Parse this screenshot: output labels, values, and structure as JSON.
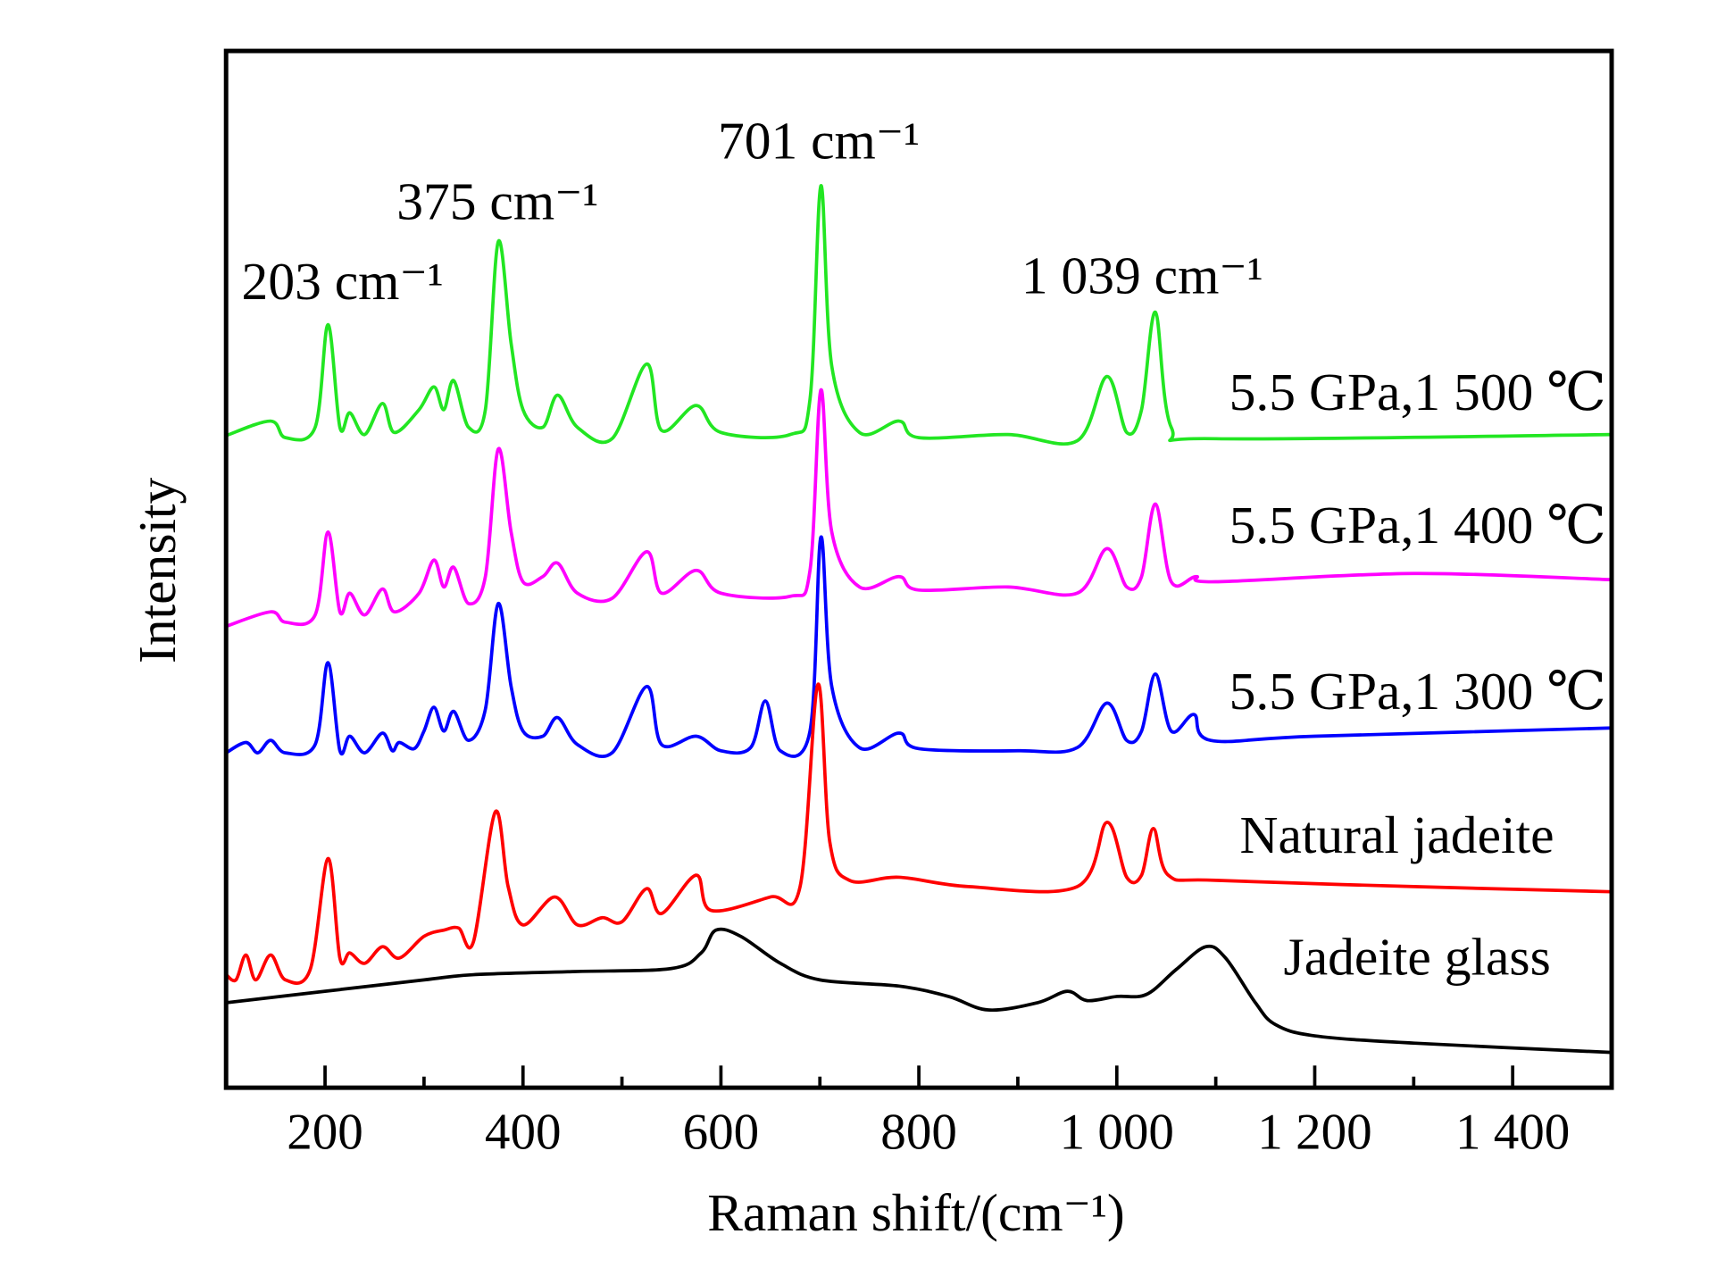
{
  "chart_data": {
    "type": "line",
    "title": "",
    "xlabel": "Raman shift/(cm⁻¹)",
    "ylabel": "Intensity",
    "xlim": [
      100,
      1500
    ],
    "ylim": [
      0,
      100
    ],
    "grid": false,
    "xticks": [
      200,
      400,
      600,
      800,
      1000,
      1200,
      1400
    ],
    "xtick_labels": [
      "200",
      "400",
      "600",
      "800",
      "1 000",
      "1 200",
      "1 400"
    ],
    "minor_xticks": [
      300,
      500,
      700,
      900,
      1100,
      1300
    ],
    "peak_annotations": [
      {
        "text": "203 cm⁻¹",
        "x": 203
      },
      {
        "text": "375 cm⁻¹",
        "x": 375
      },
      {
        "text": "701 cm⁻¹",
        "x": 701
      },
      {
        "text": "1 039 cm⁻¹",
        "x": 1039
      }
    ],
    "series": [
      {
        "name": "5.5 GPa,1 500 ℃",
        "color": "#22e622",
        "points": [
          [
            100,
            62.9
          ],
          [
            145,
            64.3
          ],
          [
            160,
            62.7
          ],
          [
            190,
            63.7
          ],
          [
            203,
            73.6
          ],
          [
            215,
            63.7
          ],
          [
            225,
            65.1
          ],
          [
            240,
            63.0
          ],
          [
            258,
            66.0
          ],
          [
            270,
            63.2
          ],
          [
            295,
            65.4
          ],
          [
            310,
            67.6
          ],
          [
            320,
            65.4
          ],
          [
            330,
            68.2
          ],
          [
            345,
            63.7
          ],
          [
            362,
            65.4
          ],
          [
            375,
            81.6
          ],
          [
            388,
            71.8
          ],
          [
            400,
            65.4
          ],
          [
            420,
            63.7
          ],
          [
            435,
            66.8
          ],
          [
            455,
            63.7
          ],
          [
            490,
            62.6
          ],
          [
            525,
            69.8
          ],
          [
            540,
            63.4
          ],
          [
            575,
            65.8
          ],
          [
            600,
            63.2
          ],
          [
            670,
            63.0
          ],
          [
            690,
            66.4
          ],
          [
            701,
            87.0
          ],
          [
            712,
            69.6
          ],
          [
            740,
            63.2
          ],
          [
            780,
            64.3
          ],
          [
            800,
            62.7
          ],
          [
            890,
            63.0
          ],
          [
            960,
            62.4
          ],
          [
            990,
            68.6
          ],
          [
            1010,
            63.2
          ],
          [
            1025,
            65.4
          ],
          [
            1039,
            74.8
          ],
          [
            1055,
            63.7
          ],
          [
            1100,
            62.6
          ],
          [
            1500,
            63.0
          ]
        ]
      },
      {
        "name": "5.5 GPa,1 400 ℃",
        "color": "#ff00ff",
        "points": [
          [
            100,
            44.5
          ],
          [
            145,
            45.9
          ],
          [
            160,
            44.9
          ],
          [
            190,
            45.6
          ],
          [
            203,
            53.6
          ],
          [
            215,
            45.9
          ],
          [
            225,
            47.7
          ],
          [
            240,
            45.6
          ],
          [
            258,
            48.1
          ],
          [
            270,
            45.9
          ],
          [
            295,
            47.7
          ],
          [
            310,
            50.9
          ],
          [
            320,
            48.3
          ],
          [
            330,
            50.2
          ],
          [
            345,
            46.7
          ],
          [
            362,
            49.3
          ],
          [
            375,
            61.6
          ],
          [
            388,
            53.6
          ],
          [
            400,
            48.8
          ],
          [
            420,
            49.3
          ],
          [
            435,
            50.6
          ],
          [
            455,
            47.7
          ],
          [
            490,
            47.2
          ],
          [
            525,
            51.7
          ],
          [
            540,
            47.7
          ],
          [
            575,
            49.9
          ],
          [
            600,
            47.7
          ],
          [
            670,
            47.4
          ],
          [
            690,
            49.9
          ],
          [
            701,
            67.3
          ],
          [
            712,
            53.6
          ],
          [
            740,
            48.3
          ],
          [
            780,
            49.3
          ],
          [
            800,
            48.0
          ],
          [
            890,
            48.3
          ],
          [
            960,
            47.7
          ],
          [
            990,
            52.0
          ],
          [
            1010,
            48.3
          ],
          [
            1025,
            49.3
          ],
          [
            1039,
            56.3
          ],
          [
            1055,
            48.8
          ],
          [
            1080,
            49.3
          ],
          [
            1100,
            48.8
          ],
          [
            1300,
            49.6
          ],
          [
            1500,
            49.0
          ]
        ]
      },
      {
        "name": "5.5 GPa,1 300 ℃",
        "color": "#0000ff",
        "points": [
          [
            100,
            32.3
          ],
          [
            120,
            33.3
          ],
          [
            132,
            32.3
          ],
          [
            145,
            33.5
          ],
          [
            160,
            32.3
          ],
          [
            190,
            33.1
          ],
          [
            203,
            41.0
          ],
          [
            215,
            32.5
          ],
          [
            225,
            33.9
          ],
          [
            240,
            32.3
          ],
          [
            258,
            34.2
          ],
          [
            268,
            32.5
          ],
          [
            275,
            33.3
          ],
          [
            290,
            32.7
          ],
          [
            300,
            34.4
          ],
          [
            310,
            36.7
          ],
          [
            320,
            34.4
          ],
          [
            330,
            36.3
          ],
          [
            345,
            33.5
          ],
          [
            362,
            36.5
          ],
          [
            375,
            46.7
          ],
          [
            388,
            38.7
          ],
          [
            400,
            34.4
          ],
          [
            420,
            33.9
          ],
          [
            435,
            35.7
          ],
          [
            455,
            33.1
          ],
          [
            490,
            32.3
          ],
          [
            525,
            38.7
          ],
          [
            540,
            33.1
          ],
          [
            575,
            33.9
          ],
          [
            600,
            32.5
          ],
          [
            630,
            32.8
          ],
          [
            645,
            37.3
          ],
          [
            660,
            32.5
          ],
          [
            690,
            34.4
          ],
          [
            701,
            53.1
          ],
          [
            712,
            38.7
          ],
          [
            740,
            32.8
          ],
          [
            780,
            34.2
          ],
          [
            800,
            32.7
          ],
          [
            900,
            32.5
          ],
          [
            960,
            32.8
          ],
          [
            990,
            37.1
          ],
          [
            1010,
            33.5
          ],
          [
            1025,
            34.4
          ],
          [
            1039,
            39.9
          ],
          [
            1055,
            34.4
          ],
          [
            1078,
            36.0
          ],
          [
            1095,
            33.5
          ],
          [
            1200,
            33.9
          ],
          [
            1500,
            34.7
          ]
        ]
      },
      {
        "name": "Natural jadeite",
        "color": "#ff0000",
        "points": [
          [
            100,
            10.9
          ],
          [
            110,
            10.4
          ],
          [
            120,
            12.8
          ],
          [
            130,
            10.4
          ],
          [
            145,
            12.8
          ],
          [
            160,
            10.4
          ],
          [
            185,
            11.4
          ],
          [
            203,
            22.1
          ],
          [
            215,
            12.5
          ],
          [
            225,
            13.0
          ],
          [
            240,
            12.0
          ],
          [
            258,
            13.6
          ],
          [
            275,
            12.5
          ],
          [
            300,
            14.6
          ],
          [
            320,
            15.2
          ],
          [
            335,
            15.4
          ],
          [
            350,
            14.1
          ],
          [
            372,
            26.6
          ],
          [
            385,
            19.4
          ],
          [
            400,
            15.7
          ],
          [
            432,
            18.4
          ],
          [
            455,
            15.7
          ],
          [
            480,
            16.4
          ],
          [
            500,
            16.0
          ],
          [
            525,
            19.2
          ],
          [
            540,
            16.8
          ],
          [
            575,
            20.5
          ],
          [
            590,
            17.1
          ],
          [
            650,
            18.4
          ],
          [
            680,
            19.4
          ],
          [
            698,
            38.9
          ],
          [
            710,
            23.7
          ],
          [
            730,
            20.0
          ],
          [
            780,
            20.3
          ],
          [
            850,
            19.4
          ],
          [
            960,
            19.4
          ],
          [
            990,
            25.6
          ],
          [
            1010,
            20.3
          ],
          [
            1025,
            20.5
          ],
          [
            1037,
            25.0
          ],
          [
            1052,
            20.5
          ],
          [
            1100,
            20.0
          ],
          [
            1300,
            19.4
          ],
          [
            1500,
            18.9
          ]
        ]
      },
      {
        "name": "Jadeite glass",
        "color": "#000000",
        "points": [
          [
            100,
            8.2
          ],
          [
            200,
            9.3
          ],
          [
            300,
            10.4
          ],
          [
            350,
            10.9
          ],
          [
            450,
            11.2
          ],
          [
            550,
            11.5
          ],
          [
            580,
            13.0
          ],
          [
            595,
            15.2
          ],
          [
            620,
            14.6
          ],
          [
            660,
            12.0
          ],
          [
            700,
            10.4
          ],
          [
            780,
            9.8
          ],
          [
            830,
            8.8
          ],
          [
            870,
            7.5
          ],
          [
            920,
            8.2
          ],
          [
            950,
            9.3
          ],
          [
            970,
            8.4
          ],
          [
            1000,
            8.8
          ],
          [
            1030,
            9.0
          ],
          [
            1060,
            11.4
          ],
          [
            1090,
            13.6
          ],
          [
            1110,
            12.5
          ],
          [
            1140,
            8.2
          ],
          [
            1160,
            6.1
          ],
          [
            1200,
            5.0
          ],
          [
            1300,
            4.3
          ],
          [
            1500,
            3.4
          ]
        ]
      }
    ]
  }
}
